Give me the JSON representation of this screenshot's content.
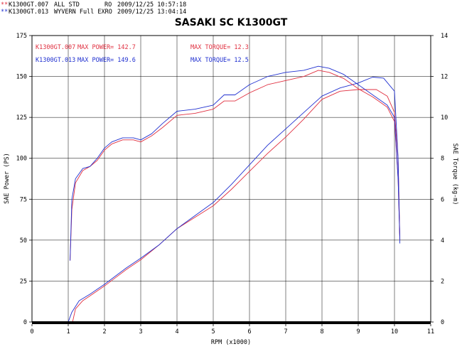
{
  "header": {
    "runs": [
      {
        "marker": "**",
        "file": "K1300GT.007",
        "desc": "ALL STD",
        "tag": "RO",
        "date": "2009/12/25 10:57:18",
        "color": "#e03040"
      },
      {
        "marker": "**",
        "file": "K1300GT.013",
        "desc": "WYVERN Full EXRO",
        "tag": "",
        "date": "2009/12/25 13:04:14",
        "color": "#2030d0"
      }
    ]
  },
  "chart_data": {
    "type": "line",
    "title": "SASAKI SC K1300GT",
    "xlabel": "RPM (x1000)",
    "ylabel": "SAE Power (PS)",
    "y2label": "SAE Torque (kg-m)",
    "xlim": [
      0,
      11
    ],
    "ylim": [
      0,
      175
    ],
    "y2lim": [
      0,
      14
    ],
    "x_ticks": [
      0,
      1,
      2,
      3,
      4,
      5,
      6,
      7,
      8,
      9,
      10,
      11
    ],
    "y_ticks": [
      0,
      25,
      50,
      75,
      100,
      125,
      150,
      175
    ],
    "y2_ticks": [
      0,
      2,
      4,
      6,
      8,
      10,
      12,
      14
    ],
    "grid": true,
    "annotations": [
      {
        "text": "K1300GT.007",
        "color": "#e03040"
      },
      {
        "text": "MAX POWER= 142.7",
        "color": "#e03040"
      },
      {
        "text": "MAX TORQUE= 12.3",
        "color": "#e03040"
      },
      {
        "text": "K1300GT.013",
        "color": "#2030d0"
      },
      {
        "text": "MAX POWER= 149.6",
        "color": "#2030d0"
      },
      {
        "text": "MAX TORQUE= 12.5",
        "color": "#2030d0"
      }
    ],
    "series": [
      {
        "name": "K1300GT.007",
        "measure": "power",
        "axis": "left",
        "color": "#e03040",
        "x": [
          1.12,
          1.2,
          1.4,
          1.6,
          1.8,
          2.0,
          2.3,
          2.6,
          3.0,
          3.5,
          4.0,
          4.5,
          5.0,
          5.5,
          6.0,
          6.5,
          7.0,
          7.5,
          8.0,
          8.5,
          9.0,
          9.5,
          9.8,
          10.0,
          10.1,
          10.15
        ],
        "y": [
          0,
          8,
          13,
          16,
          19,
          22,
          27,
          32,
          38,
          47,
          57,
          64,
          71,
          81,
          92,
          103,
          113,
          124,
          136,
          141,
          142,
          142,
          138,
          128,
          100,
          50
        ]
      },
      {
        "name": "K1300GT.013",
        "measure": "power",
        "axis": "left",
        "color": "#2030d0",
        "x": [
          1.0,
          1.1,
          1.3,
          1.6,
          1.8,
          2.0,
          2.3,
          2.6,
          3.0,
          3.5,
          4.0,
          4.5,
          5.0,
          5.5,
          6.0,
          6.5,
          7.0,
          7.5,
          8.0,
          8.5,
          9.0,
          9.4,
          9.7,
          10.0,
          10.1,
          10.15
        ],
        "y": [
          0,
          6,
          13,
          17,
          20,
          23,
          28,
          33,
          39,
          47,
          57,
          65,
          73,
          84,
          96,
          108,
          118,
          128,
          138,
          143,
          146,
          149.6,
          149,
          141,
          100,
          48
        ]
      },
      {
        "name": "K1300GT.007",
        "measure": "torque",
        "axis": "right",
        "color": "#e03040",
        "x": [
          1.05,
          1.1,
          1.2,
          1.4,
          1.6,
          1.8,
          2.0,
          2.2,
          2.5,
          2.8,
          3.0,
          3.3,
          3.6,
          4.0,
          4.5,
          5.0,
          5.3,
          5.6,
          6.0,
          6.5,
          7.0,
          7.5,
          7.9,
          8.2,
          8.6,
          9.0,
          9.4,
          9.8,
          10.0,
          10.1,
          10.15
        ],
        "y": [
          3.0,
          5.5,
          6.8,
          7.4,
          7.6,
          7.9,
          8.4,
          8.7,
          8.9,
          8.9,
          8.8,
          9.1,
          9.5,
          10.1,
          10.2,
          10.4,
          10.8,
          10.8,
          11.2,
          11.6,
          11.8,
          12.0,
          12.3,
          12.2,
          11.9,
          11.4,
          11.0,
          10.5,
          9.8,
          7.0,
          4.0
        ]
      },
      {
        "name": "K1300GT.013",
        "measure": "torque",
        "axis": "right",
        "color": "#2030d0",
        "x": [
          1.05,
          1.1,
          1.2,
          1.4,
          1.6,
          1.8,
          2.0,
          2.2,
          2.5,
          2.8,
          3.0,
          3.3,
          3.6,
          4.0,
          4.5,
          5.0,
          5.3,
          5.6,
          6.0,
          6.5,
          7.0,
          7.5,
          7.9,
          8.2,
          8.6,
          9.0,
          9.4,
          9.8,
          10.0,
          10.1,
          10.15
        ],
        "y": [
          3.0,
          6.0,
          7.0,
          7.5,
          7.6,
          8.0,
          8.5,
          8.8,
          9.0,
          9.0,
          8.9,
          9.2,
          9.7,
          10.3,
          10.4,
          10.6,
          11.1,
          11.1,
          11.6,
          12.0,
          12.2,
          12.3,
          12.5,
          12.4,
          12.1,
          11.6,
          11.1,
          10.6,
          10.0,
          7.0,
          4.0
        ]
      }
    ]
  }
}
